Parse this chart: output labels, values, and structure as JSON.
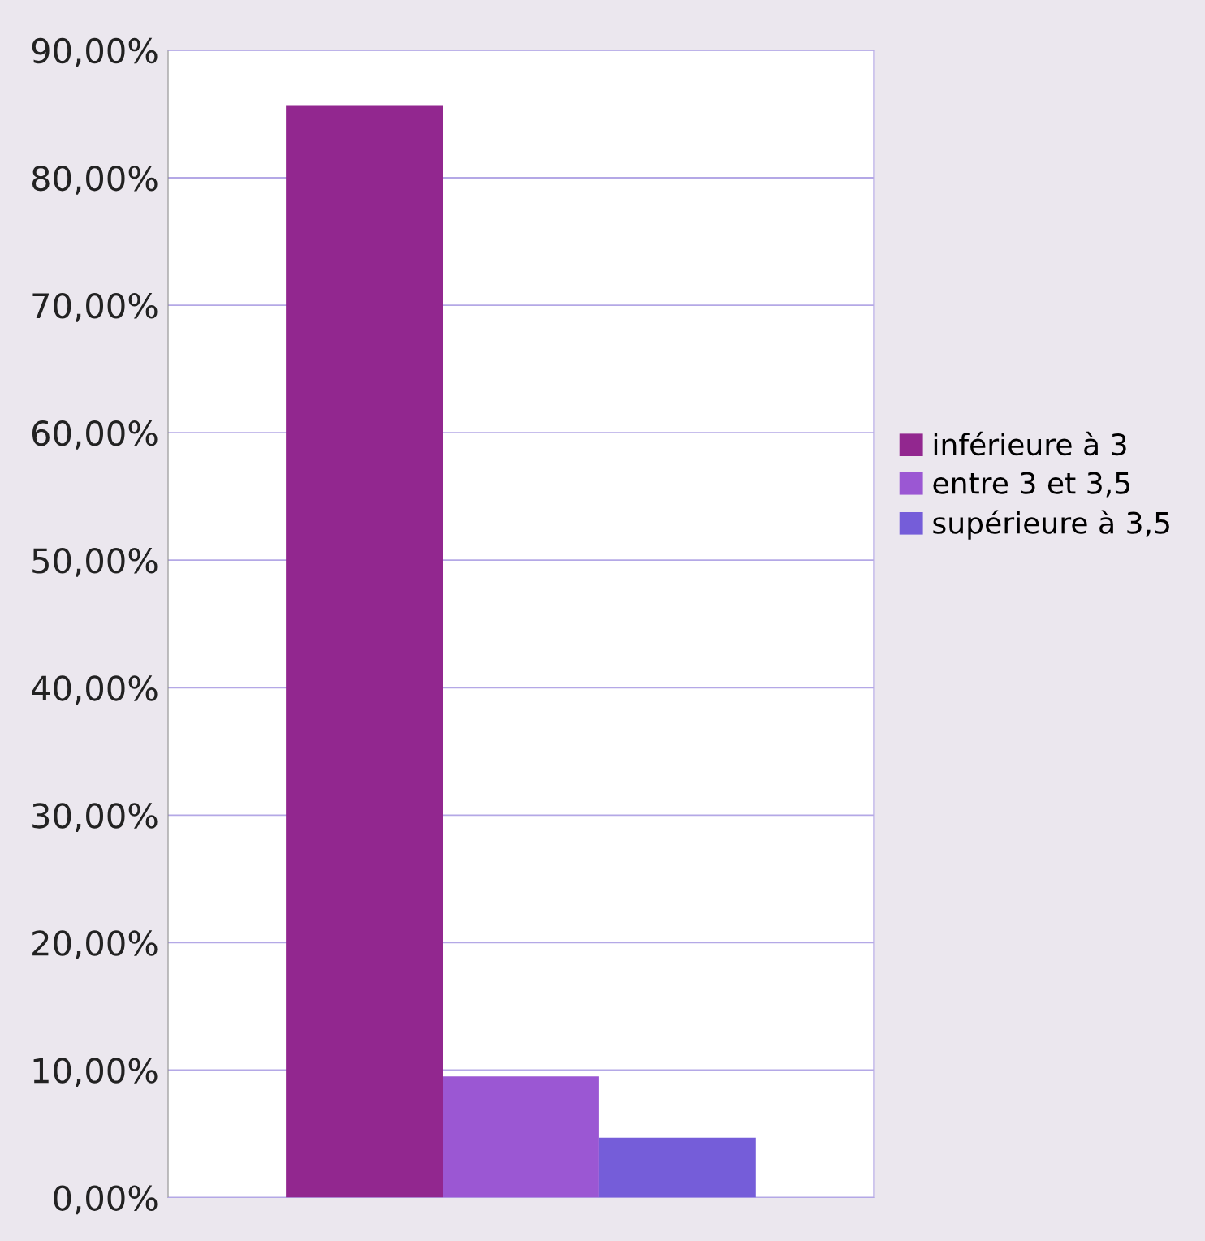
{
  "chart_data": {
    "type": "bar",
    "categories": [
      null
    ],
    "series": [
      {
        "name": "inférieure à 3",
        "color": "#92278f",
        "values": [
          85.7
        ]
      },
      {
        "name": "entre 3 et 3,5",
        "color": "#9b57d3",
        "values": [
          9.5
        ]
      },
      {
        "name": "supérieure à 3,5",
        "color": "#755dd9",
        "values": [
          4.7
        ]
      }
    ],
    "ylim": [
      0,
      90
    ],
    "yticks": [
      {
        "value": 0,
        "label": "0,00%"
      },
      {
        "value": 10,
        "label": "10,00%"
      },
      {
        "value": 20,
        "label": "20,00%"
      },
      {
        "value": 30,
        "label": "30,00%"
      },
      {
        "value": 40,
        "label": "40,00%"
      },
      {
        "value": 50,
        "label": "50,00%"
      },
      {
        "value": 60,
        "label": "60,00%"
      },
      {
        "value": 70,
        "label": "70,00%"
      },
      {
        "value": 80,
        "label": "80,00%"
      },
      {
        "value": 90,
        "label": "90,00%"
      }
    ],
    "grid": "y",
    "legend": "right"
  }
}
